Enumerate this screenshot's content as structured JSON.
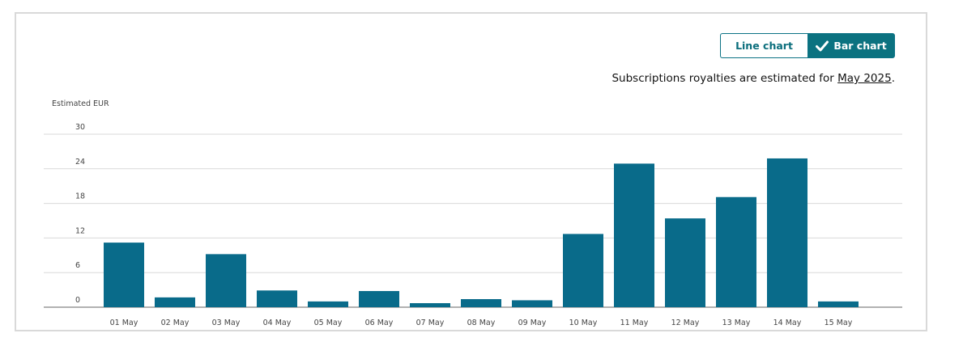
{
  "toggle": {
    "line_label": "Line chart",
    "bar_label": "Bar chart",
    "selected": "bar",
    "check_icon": "check-icon"
  },
  "note": {
    "text": "Subscriptions royalties are estimated for ",
    "link": "May 2025",
    "suffix": "."
  },
  "colors": {
    "bar": "#096b8a",
    "accent": "#0b7280",
    "grid": "#d9d9d9",
    "axis": "#999999"
  },
  "chart_data": {
    "type": "bar",
    "ylabel": "Estimated EUR",
    "xlabel": "",
    "title": "",
    "grid": true,
    "ylim": [
      0,
      30
    ],
    "yticks": [
      0,
      6,
      12,
      18,
      24,
      30
    ],
    "categories": [
      "01 May",
      "02 May",
      "03 May",
      "04 May",
      "05 May",
      "06 May",
      "07 May",
      "08 May",
      "09 May",
      "10 May",
      "11 May",
      "12 May",
      "13 May",
      "14 May",
      "15 May"
    ],
    "values": [
      11.2,
      1.7,
      9.2,
      2.9,
      1.0,
      2.8,
      0.7,
      1.4,
      1.2,
      12.7,
      24.9,
      15.4,
      19.1,
      25.8,
      1.0
    ]
  }
}
